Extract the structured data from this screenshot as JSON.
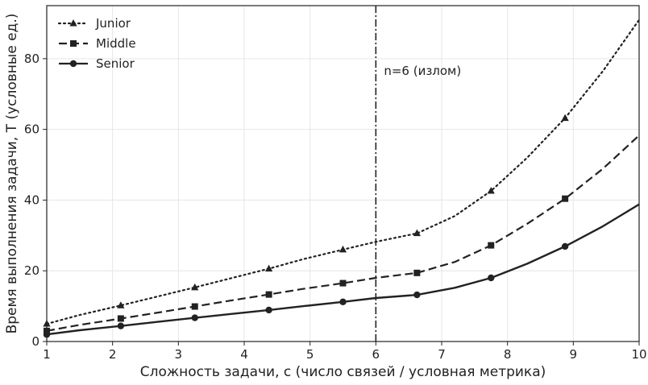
{
  "chart_data": {
    "type": "line",
    "xlabel": "Сложность задачи, c (число связей / условная метрика)",
    "ylabel": "Время выполнения задачи, T (условные ед.)",
    "xlim": [
      1,
      10
    ],
    "ylim": [
      0,
      95
    ],
    "x_ticks": [
      1,
      2,
      3,
      4,
      5,
      6,
      7,
      8,
      9,
      10
    ],
    "y_ticks": [
      0,
      20,
      40,
      60,
      80
    ],
    "grid": true,
    "legend_position": "top-left",
    "vline": {
      "x": 6,
      "label": "n=6 (излом)"
    },
    "series": [
      {
        "name": "Junior",
        "style": "dotted",
        "marker": "triangle",
        "color": "#222222",
        "x": [
          1,
          1.5,
          2.125,
          2.7,
          3.25,
          3.8,
          4.375,
          4.9,
          5.5,
          6,
          6.625,
          7.2,
          7.75,
          8.3,
          8.875,
          9.45,
          10
        ],
        "y": [
          5.0,
          7.5,
          10.2,
          12.8,
          15.3,
          17.9,
          20.6,
          23.3,
          26.0,
          28.2,
          30.6,
          35.5,
          42.6,
          52.0,
          63.2,
          76.5,
          91.0
        ],
        "markers_x": [
          1,
          2.125,
          3.25,
          4.375,
          5.5,
          6.625,
          7.75,
          8.875
        ],
        "markers_y": [
          5.0,
          10.2,
          15.3,
          20.6,
          26.0,
          30.6,
          42.6,
          63.2
        ]
      },
      {
        "name": "Middle",
        "style": "dashed",
        "marker": "square",
        "color": "#222222",
        "x": [
          1,
          1.5,
          2.125,
          2.7,
          3.25,
          3.8,
          4.375,
          4.9,
          5.5,
          6,
          6.625,
          7.2,
          7.75,
          8.3,
          8.875,
          9.45,
          10
        ],
        "y": [
          3.0,
          4.7,
          6.5,
          8.2,
          9.9,
          11.6,
          13.3,
          14.9,
          16.5,
          18.0,
          19.4,
          22.5,
          27.2,
          33.3,
          40.4,
          48.9,
          58.3
        ],
        "markers_x": [
          1,
          2.125,
          3.25,
          4.375,
          5.5,
          6.625,
          7.75,
          8.875
        ],
        "markers_y": [
          3.0,
          6.5,
          9.9,
          13.3,
          16.5,
          19.4,
          27.2,
          40.4
        ]
      },
      {
        "name": "Senior",
        "style": "solid",
        "marker": "circle",
        "color": "#222222",
        "x": [
          1,
          1.5,
          2.125,
          2.7,
          3.25,
          3.8,
          4.375,
          4.9,
          5.5,
          6,
          6.625,
          7.2,
          7.75,
          8.3,
          8.875,
          9.45,
          10
        ],
        "y": [
          2.0,
          3.2,
          4.4,
          5.6,
          6.7,
          7.8,
          8.9,
          10.0,
          11.2,
          12.3,
          13.2,
          15.2,
          18.0,
          22.0,
          26.9,
          32.6,
          38.8
        ],
        "markers_x": [
          1,
          2.125,
          3.25,
          4.375,
          5.5,
          6.625,
          7.75,
          8.875
        ],
        "markers_y": [
          2.0,
          4.4,
          6.7,
          8.9,
          11.2,
          13.2,
          18.0,
          26.9
        ]
      }
    ]
  }
}
